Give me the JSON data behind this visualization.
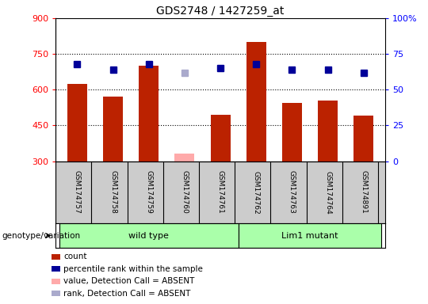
{
  "title": "GDS2748 / 1427259_at",
  "samples": [
    "GSM174757",
    "GSM174758",
    "GSM174759",
    "GSM174760",
    "GSM174761",
    "GSM174762",
    "GSM174763",
    "GSM174764",
    "GSM174891"
  ],
  "counts": [
    625,
    570,
    700,
    330,
    495,
    800,
    545,
    555,
    490
  ],
  "percentile_ranks": [
    68,
    64,
    68,
    null,
    65,
    68,
    64,
    64,
    62
  ],
  "absent_values": [
    null,
    null,
    null,
    330,
    null,
    null,
    null,
    null,
    null
  ],
  "absent_ranks": [
    null,
    null,
    null,
    62,
    null,
    null,
    null,
    null,
    null
  ],
  "is_absent": [
    false,
    false,
    false,
    true,
    false,
    false,
    false,
    false,
    false
  ],
  "wild_type_indices": [
    0,
    1,
    2,
    3,
    4
  ],
  "mutant_indices": [
    5,
    6,
    7,
    8
  ],
  "ylim_left": [
    300,
    900
  ],
  "ylim_right": [
    0,
    100
  ],
  "yticks_left": [
    300,
    450,
    600,
    750,
    900
  ],
  "yticks_right": [
    0,
    25,
    50,
    75,
    100
  ],
  "bar_color_present": "#bb2200",
  "bar_color_absent": "#ffaaaa",
  "dot_color_present": "#000099",
  "dot_color_absent": "#aaaacc",
  "wild_type_color": "#aaffaa",
  "mutant_color": "#aaffaa",
  "bg_color": "#cccccc",
  "plot_bg": "#ffffff",
  "legend_items": [
    {
      "color": "#bb2200",
      "label": "count"
    },
    {
      "color": "#000099",
      "label": "percentile rank within the sample"
    },
    {
      "color": "#ffaaaa",
      "label": "value, Detection Call = ABSENT"
    },
    {
      "color": "#aaaacc",
      "label": "rank, Detection Call = ABSENT"
    }
  ]
}
